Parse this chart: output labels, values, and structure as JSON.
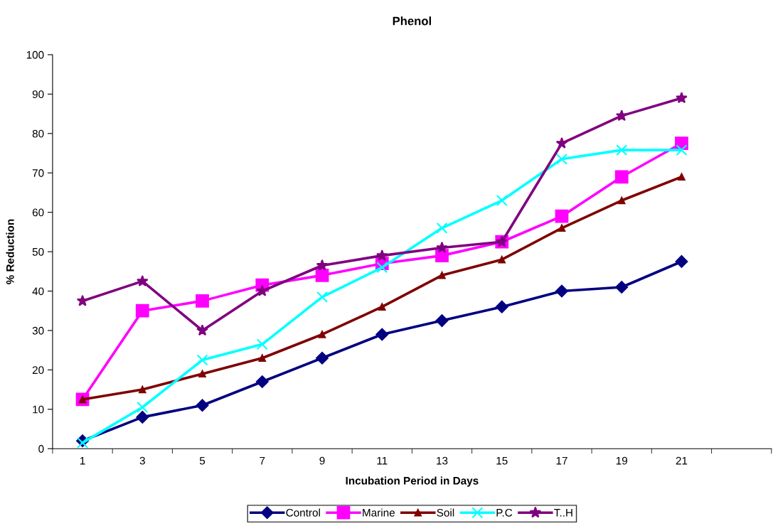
{
  "chart_data": {
    "type": "line",
    "title": "Phenol",
    "xlabel": "Incubation Period in Days",
    "ylabel": "% Reduction",
    "categories": [
      "1",
      "3",
      "5",
      "7",
      "9",
      "11",
      "13",
      "15",
      "17",
      "19",
      "21"
    ],
    "ylim": [
      0,
      100
    ],
    "yticks": [
      0,
      10,
      20,
      30,
      40,
      50,
      60,
      70,
      80,
      90,
      100
    ],
    "grid": false,
    "legend": "bottom",
    "series": [
      {
        "name": "Control",
        "color": "#000080",
        "marker": "diamond",
        "values": [
          2,
          8,
          11,
          17,
          23,
          29,
          32.5,
          36,
          40,
          41,
          47.5
        ]
      },
      {
        "name": "Marine",
        "color": "#ff00ff",
        "marker": "square",
        "values": [
          12.5,
          35,
          37.5,
          41.5,
          44,
          47,
          49,
          52.5,
          59,
          69,
          77.5
        ]
      },
      {
        "name": "Soil",
        "color": "#800000",
        "marker": "triangle",
        "values": [
          12.5,
          15,
          19,
          23,
          29,
          36,
          44,
          48,
          56,
          63,
          69
        ]
      },
      {
        "name": "P.C",
        "color": "#00ffff",
        "marker": "cross",
        "values": [
          1.5,
          10.5,
          22.5,
          26.5,
          38.5,
          46,
          56,
          63,
          73.5,
          75.8,
          75.8
        ]
      },
      {
        "name": "T..H",
        "color": "#800080",
        "marker": "star",
        "values": [
          37.5,
          42.5,
          30,
          40,
          46.5,
          49,
          51,
          52.5,
          77.5,
          84.5,
          89
        ]
      }
    ]
  }
}
